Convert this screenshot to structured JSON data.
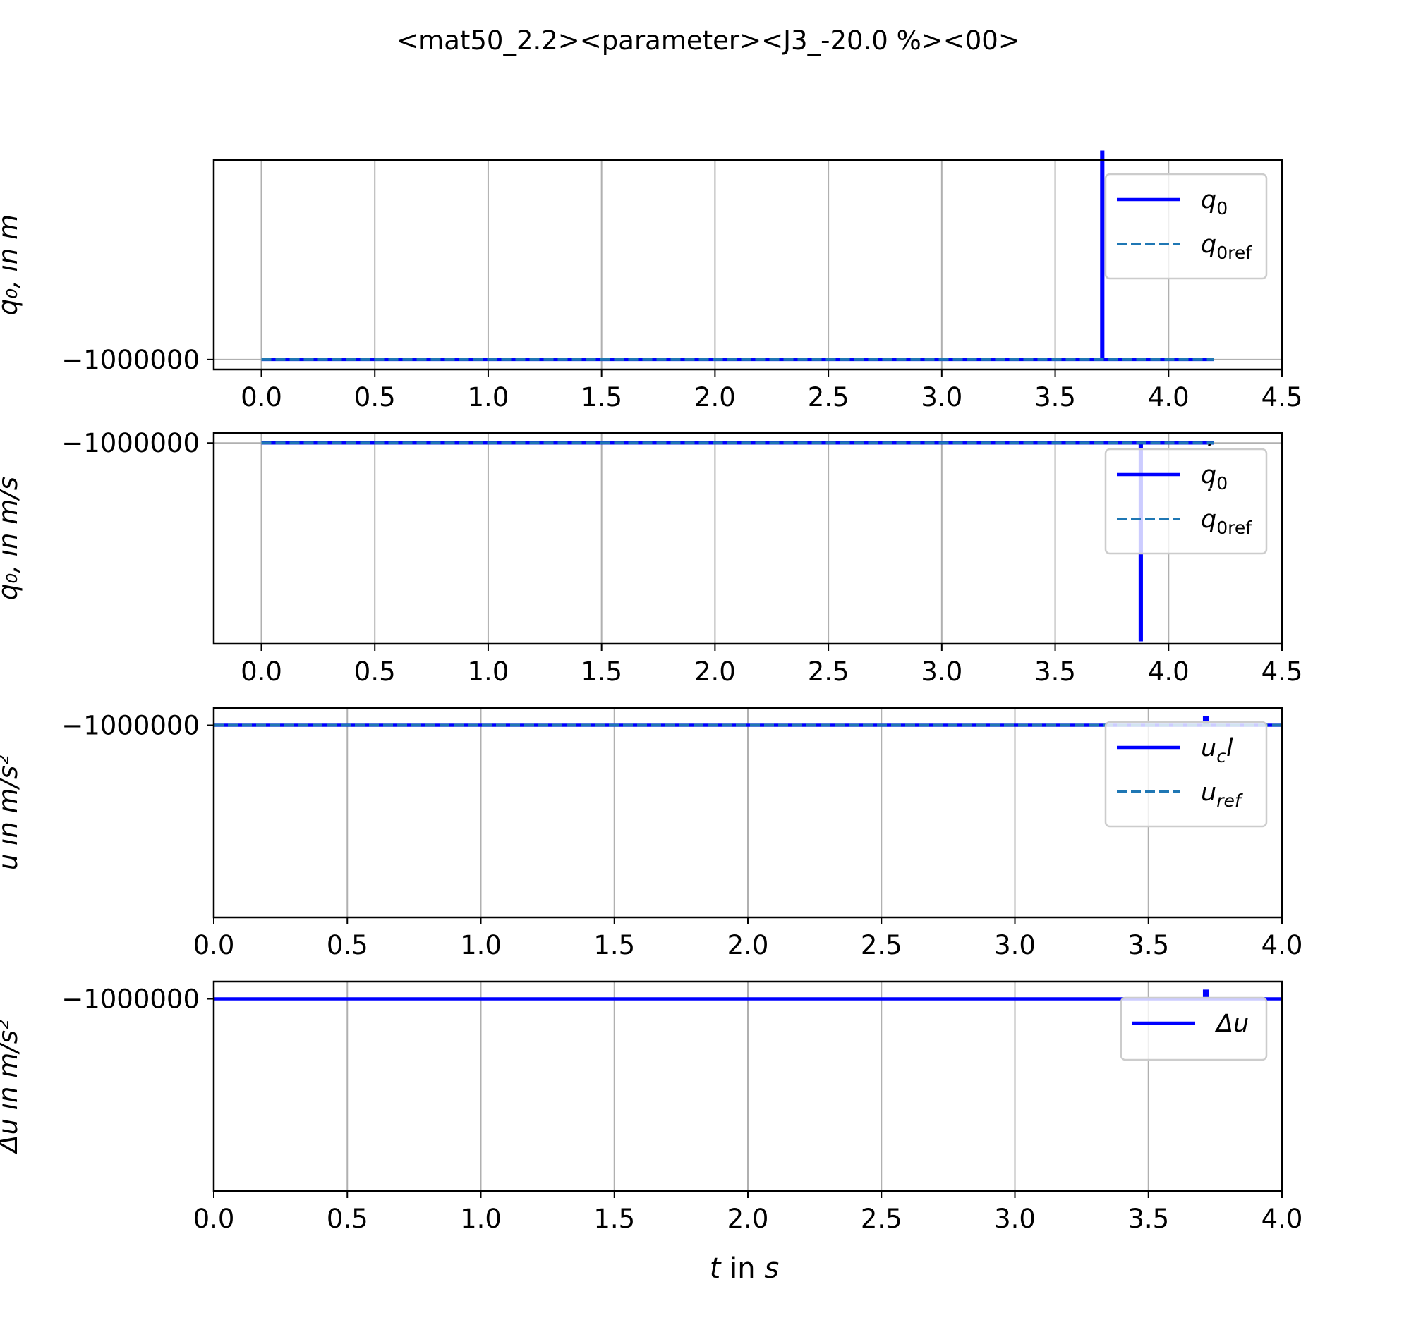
{
  "chart_data": {
    "title": "<mat50_2.2><parameter><J3_-20.0 %><00>",
    "xlabel_var": "t",
    "xlabel_unit": "s",
    "colors": {
      "actual": "#0000ff",
      "reference": "#1f77b4",
      "grid": "#b0b0b0",
      "legend_border": "#cccccc"
    },
    "subplots": [
      {
        "id": "position",
        "type": "line",
        "ylabel": "q₀, in m",
        "xlim": [
          -0.21,
          4.5
        ],
        "xticks": [
          0,
          0.5,
          1,
          1.5,
          2,
          2.5,
          3,
          3.5,
          4,
          4.5
        ],
        "xtick_labels": [
          "0.0",
          "0.5",
          "1.0",
          "1.5",
          "2.0",
          "2.5",
          "3.0",
          "3.5",
          "4.0",
          "4.5"
        ],
        "ylim": [
          -1000050,
          -999000
        ],
        "yticks": [
          -1000000
        ],
        "ytick_labels": [
          "−1000000"
        ],
        "legend_loc": "upper right",
        "series": [
          {
            "name": "q0",
            "style": "solid",
            "color": "actual",
            "x": [
              0,
              3.705,
              3.705,
              3.71,
              3.71,
              4.2
            ],
            "y": [
              -1000000,
              -1000000,
              -998960,
              -998960,
              -1000000,
              -1000000
            ]
          },
          {
            "name": "q0ref",
            "style": "dashed",
            "color": "reference",
            "x": [
              0,
              4.2
            ],
            "y": [
              -1000000,
              -1000000
            ]
          }
        ],
        "legend": [
          {
            "main": "q",
            "sub": "0",
            "dot": false
          },
          {
            "main": "q",
            "sub": "0ref",
            "dot": false
          }
        ]
      },
      {
        "id": "velocity",
        "type": "line",
        "ylabel": "q̇₀,  in m/s",
        "xlim": [
          -0.21,
          4.5
        ],
        "xticks": [
          0,
          0.5,
          1,
          1.5,
          2,
          2.5,
          3,
          3.5,
          4,
          4.5
        ],
        "xtick_labels": [
          "0.0",
          "0.5",
          "1.0",
          "1.5",
          "2.0",
          "2.5",
          "3.0",
          "3.5",
          "4.0",
          "4.5"
        ],
        "ylim": [
          -1001000,
          -999950
        ],
        "yticks": [
          -1000000
        ],
        "ytick_labels": [
          "−1000000"
        ],
        "legend_loc": "upper right",
        "series": [
          {
            "name": "q0dot",
            "style": "solid",
            "color": "actual",
            "x": [
              0,
              3.875,
              3.875,
              3.88,
              3.88,
              4.2
            ],
            "y": [
              -1000000,
              -1000000,
              -1000980,
              -1000980,
              -1000000,
              -1000000
            ]
          },
          {
            "name": "q0refdot",
            "style": "dashed",
            "color": "reference",
            "x": [
              0,
              4.2
            ],
            "y": [
              -1000000,
              -1000000
            ]
          }
        ],
        "legend": [
          {
            "main": "q",
            "sub": "0",
            "dot": true
          },
          {
            "main": "q",
            "sub": "0ref",
            "dot": true
          }
        ]
      },
      {
        "id": "control",
        "type": "line",
        "ylabel": "u in m/s²",
        "xlim": [
          0,
          4.0
        ],
        "xticks": [
          0,
          0.5,
          1,
          1.5,
          2,
          2.5,
          3,
          3.5,
          4
        ],
        "xtick_labels": [
          "0.0",
          "0.5",
          "1.0",
          "1.5",
          "2.0",
          "2.5",
          "3.0",
          "3.5",
          "4.0"
        ],
        "ylim": [
          -1001000,
          -999910
        ],
        "yticks": [
          -1000000
        ],
        "ytick_labels": [
          "−1000000"
        ],
        "legend_loc": "upper right",
        "series": [
          {
            "name": "ucl",
            "style": "solid",
            "color": "actual",
            "x": [
              0,
              3.71,
              3.71,
              3.72,
              3.72,
              4.0
            ],
            "y": [
              -1000000,
              -1000000,
              -999960,
              -999960,
              -1000000,
              -1000000
            ]
          },
          {
            "name": "uref",
            "style": "dashed",
            "color": "reference",
            "x": [
              0,
              4.0
            ],
            "y": [
              -1000000,
              -1000000
            ]
          }
        ],
        "legend": [
          {
            "main": "u",
            "sub": "c",
            "tail": "l",
            "dot": false
          },
          {
            "main": "u",
            "sub": "ref",
            "dot": false
          }
        ]
      },
      {
        "id": "delta",
        "type": "line",
        "ylabel": "Δu in m/s²",
        "xlim": [
          0,
          4.0
        ],
        "xticks": [
          0,
          0.5,
          1,
          1.5,
          2,
          2.5,
          3,
          3.5,
          4
        ],
        "xtick_labels": [
          "0.0",
          "0.5",
          "1.0",
          "1.5",
          "2.0",
          "2.5",
          "3.0",
          "3.5",
          "4.0"
        ],
        "ylim": [
          -1001000,
          -999910
        ],
        "yticks": [
          -1000000
        ],
        "ytick_labels": [
          "−1000000"
        ],
        "legend_loc": "upper right",
        "series": [
          {
            "name": "du",
            "style": "solid",
            "color": "actual",
            "x": [
              0,
              3.71,
              3.71,
              3.72,
              3.72,
              4.0
            ],
            "y": [
              -1000000,
              -1000000,
              -999960,
              -999960,
              -1000000,
              -1000000
            ]
          }
        ],
        "legend": [
          {
            "main": "Δu",
            "sub": "",
            "dot": false,
            "upright_prefix": true
          }
        ]
      }
    ]
  }
}
